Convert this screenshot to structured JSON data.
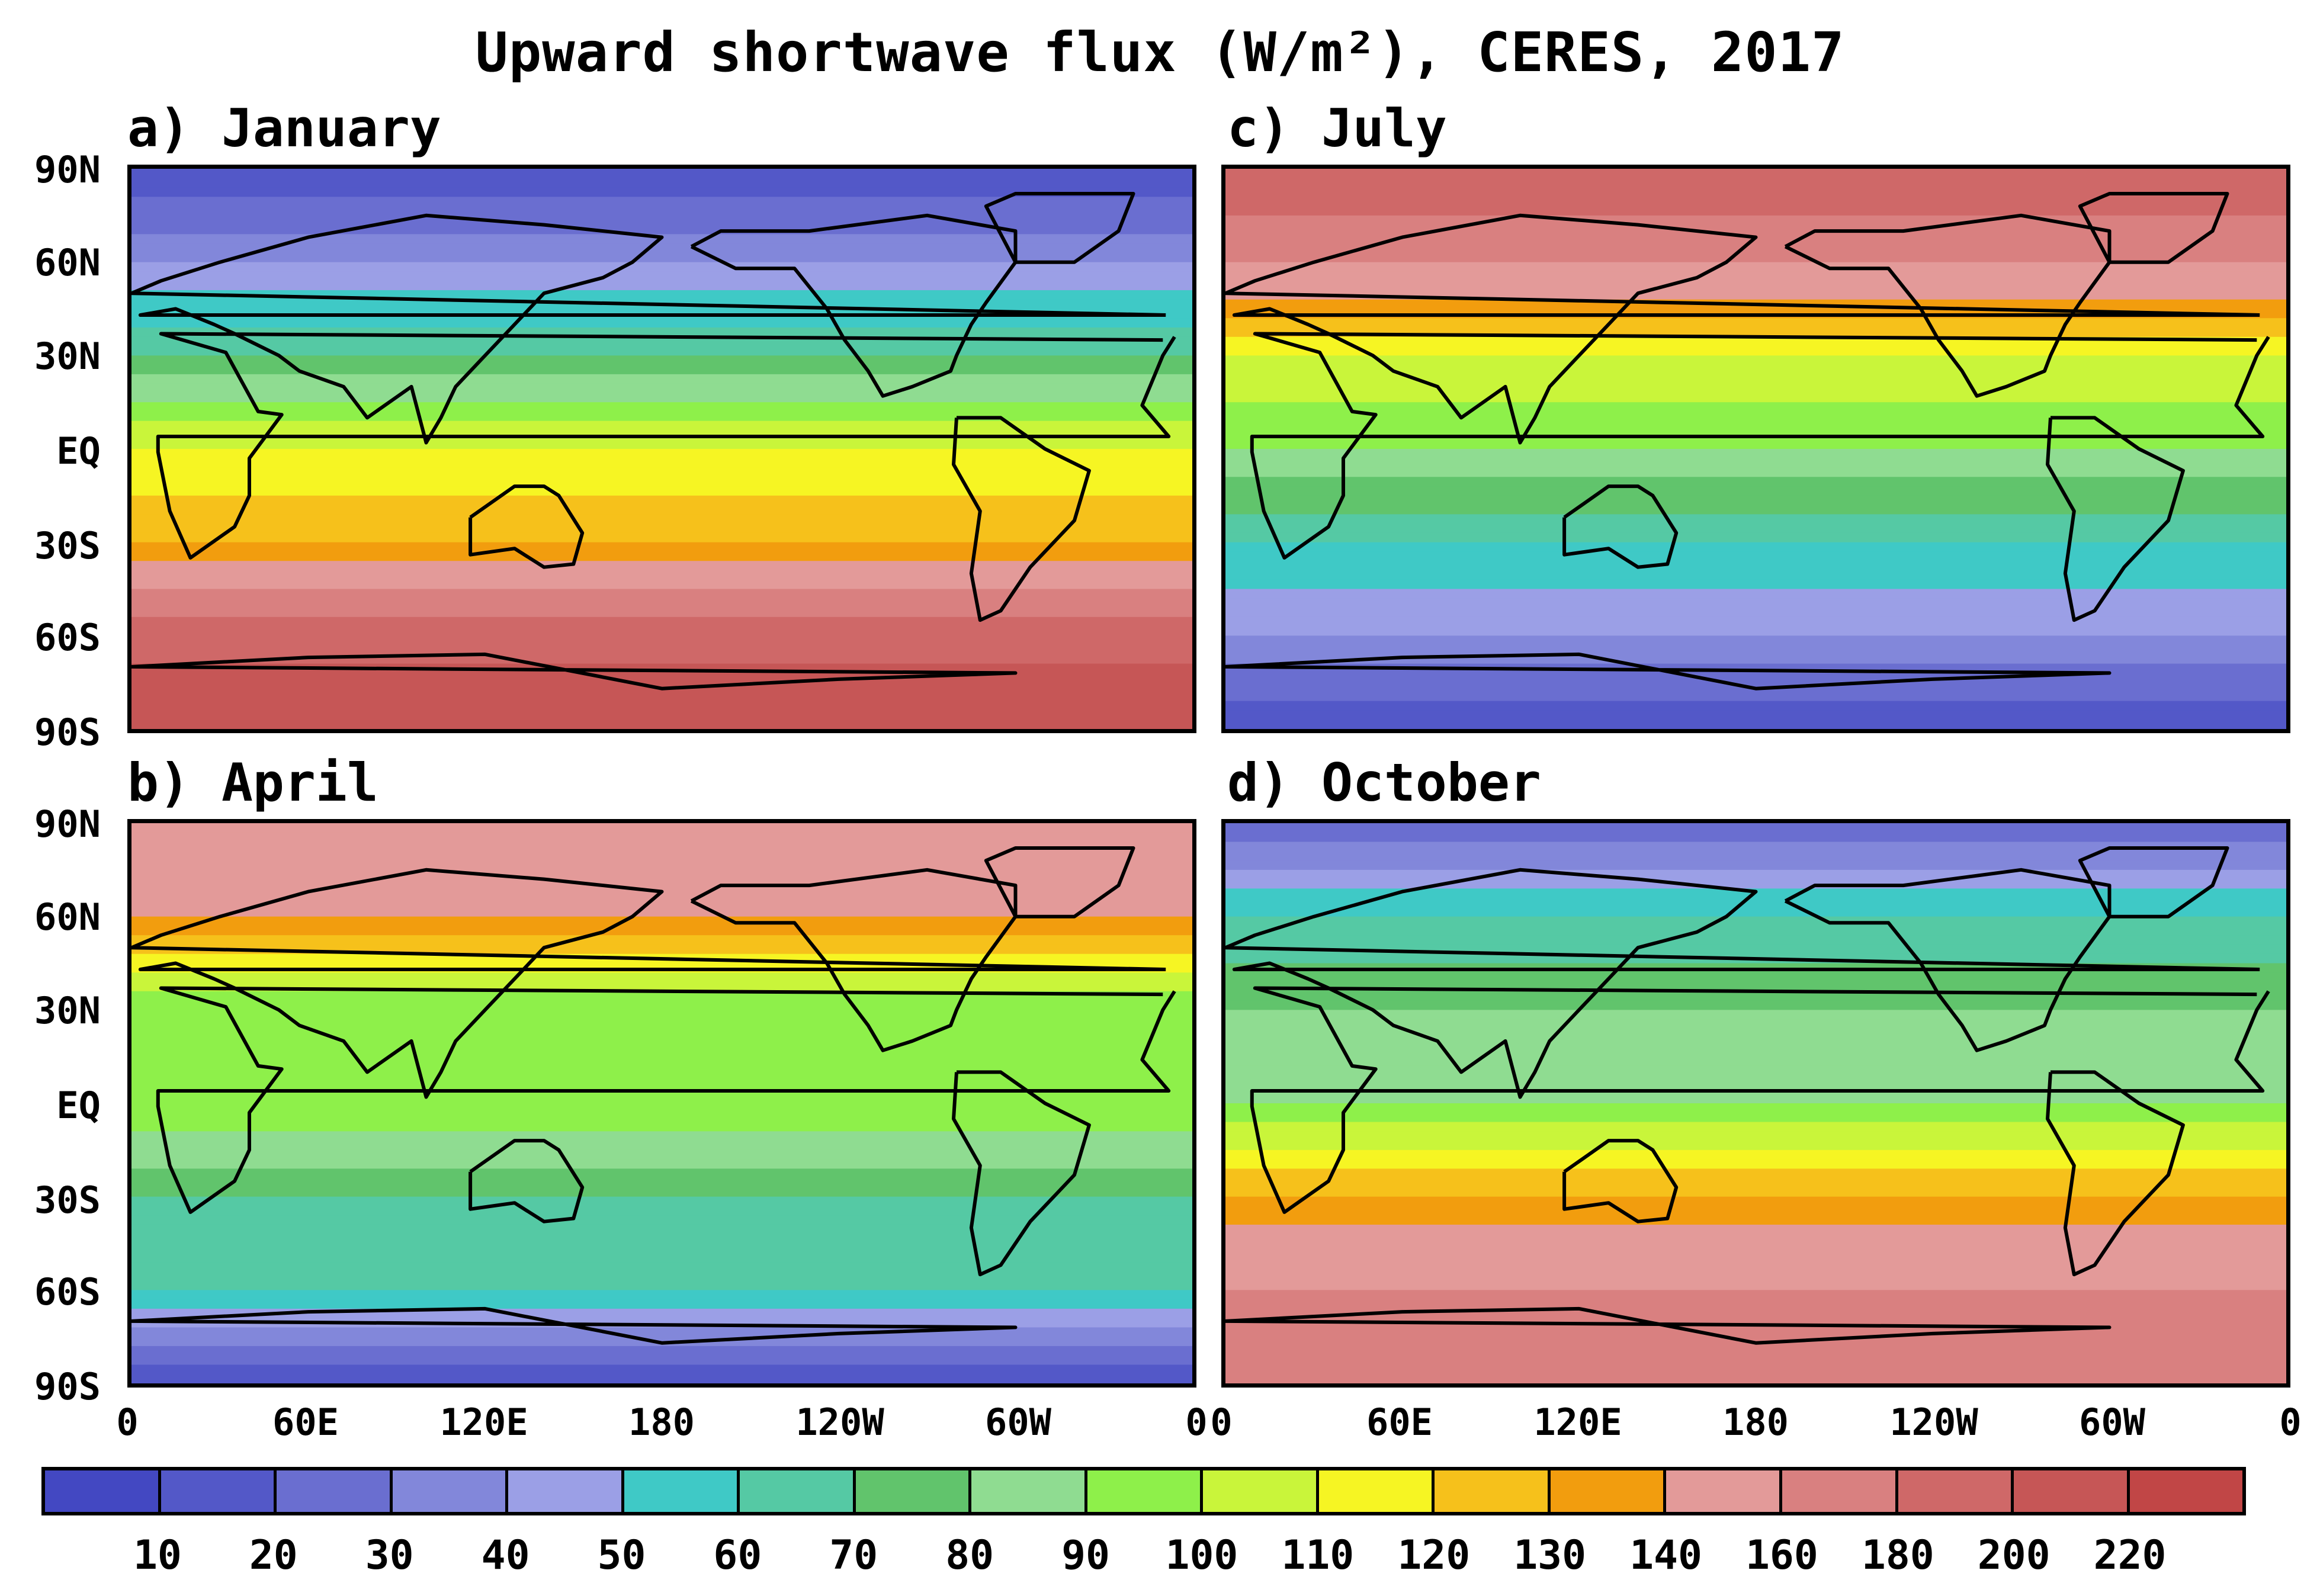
{
  "title": "Upward shortwave flux (W/m²), CERES, 2017",
  "panels": [
    {
      "label": "a) January",
      "month": "January"
    },
    {
      "label": "b) April",
      "month": "April"
    },
    {
      "label": "c) July",
      "month": "July"
    },
    {
      "label": "d) October",
      "month": "October"
    }
  ],
  "y_ticks": [
    "90N",
    "60N",
    "30N",
    "EQ",
    "30S",
    "60S",
    "90S"
  ],
  "x_ticks": [
    "0",
    "60E",
    "120E",
    "180",
    "120W",
    "60W",
    "0"
  ],
  "colorbar": {
    "labels": [
      "10",
      "20",
      "30",
      "40",
      "50",
      "60",
      "70",
      "80",
      "90",
      "100",
      "110",
      "120",
      "130",
      "140",
      "160",
      "180",
      "200",
      "220"
    ],
    "colors": [
      "#4348c2",
      "#5358c8",
      "#6a6ed0",
      "#8287da",
      "#9b9fe6",
      "#3fc9c6",
      "#55c9a4",
      "#61c46c",
      "#8fdc91",
      "#8ef04a",
      "#c9f53a",
      "#f6f523",
      "#f6c11b",
      "#f29d0e",
      "#e39a99",
      "#d98080",
      "#cf6868",
      "#c65656",
      "#c14646"
    ]
  },
  "chart_data": {
    "type": "heatmap",
    "title": "Upward shortwave flux (W/m²), CERES, 2017",
    "units": "W/m²",
    "x_ticks": [
      "0",
      "60E",
      "120E",
      "180",
      "120W",
      "60W",
      "0"
    ],
    "y_ticks": [
      "90N",
      "60N",
      "30N",
      "EQ",
      "30S",
      "60S",
      "90S"
    ],
    "color_levels": [
      10,
      20,
      30,
      40,
      50,
      60,
      70,
      80,
      90,
      100,
      110,
      120,
      130,
      140,
      160,
      180,
      200,
      220
    ],
    "panels": [
      {
        "name": "January",
        "zonal_mean_profile": {
          "90N": 10,
          "60N": 40,
          "30N": 70,
          "EQ": 110,
          "30S": 130,
          "60S": 190,
          "90S": 220
        }
      },
      {
        "name": "April",
        "zonal_mean_profile": {
          "90N": 160,
          "60N": 140,
          "30N": 90,
          "EQ": 100,
          "30S": 70,
          "60S": 60,
          "90S": 10
        }
      },
      {
        "name": "July",
        "zonal_mean_profile": {
          "90N": 200,
          "60N": 160,
          "30N": 110,
          "EQ": 90,
          "30S": 60,
          "60S": 40,
          "90S": 10
        }
      },
      {
        "name": "October",
        "zonal_mean_profile": {
          "90N": 20,
          "60N": 60,
          "30N": 80,
          "EQ": 90,
          "30S": 130,
          "60S": 160,
          "90S": 160
        }
      }
    ]
  }
}
